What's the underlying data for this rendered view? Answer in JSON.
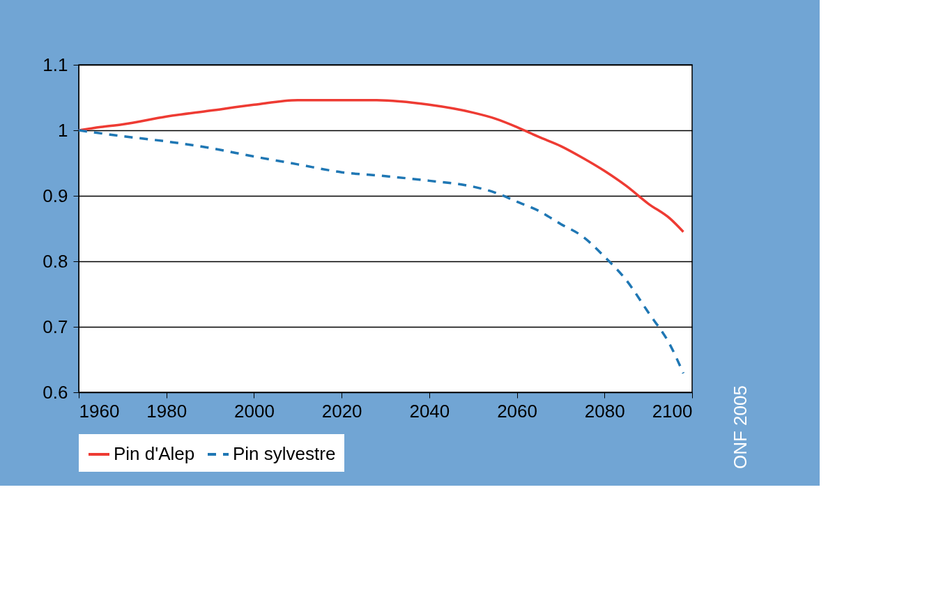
{
  "chart_data": {
    "type": "line",
    "xlim": [
      1960,
      2100
    ],
    "xticks": [
      1960,
      1980,
      2000,
      2020,
      2040,
      2060,
      2080,
      2100
    ],
    "ylim": [
      0.6,
      1.1
    ],
    "yticks": [
      0.6,
      0.7,
      0.8,
      0.9,
      1,
      1.1
    ],
    "grid": "y",
    "legend": "bottom",
    "annotations": [
      "ONF 2005"
    ],
    "series": [
      {
        "name": "Pin d'Alep",
        "color": "#ee3b33",
        "line_style": "solid",
        "x": [
          1960,
          1965,
          1970,
          1980,
          1990,
          2000,
          2010,
          2020,
          2028,
          2040,
          2050,
          2055,
          2060,
          2065,
          2070,
          2075,
          2080,
          2085,
          2090,
          2095,
          2098
        ],
        "values": [
          1.0,
          1.005,
          1.009,
          1.021,
          1.03,
          1.039,
          1.046,
          1.046,
          1.046,
          1.039,
          1.027,
          1.018,
          1.005,
          0.99,
          0.976,
          0.958,
          0.938,
          0.915,
          0.888,
          0.865,
          0.845
        ]
      },
      {
        "name": "Pin sylvestre",
        "color": "#1f77b4",
        "line_style": "dashed",
        "x": [
          1960,
          1970,
          1980,
          1990,
          2000,
          2010,
          2020,
          2030,
          2040,
          2050,
          2055,
          2060,
          2065,
          2070,
          2075,
          2080,
          2085,
          2090,
          2095,
          2098
        ],
        "values": [
          1.0,
          0.991,
          0.983,
          0.973,
          0.96,
          0.948,
          0.936,
          0.93,
          0.923,
          0.914,
          0.905,
          0.891,
          0.877,
          0.857,
          0.838,
          0.807,
          0.771,
          0.722,
          0.672,
          0.629
        ]
      }
    ]
  }
}
